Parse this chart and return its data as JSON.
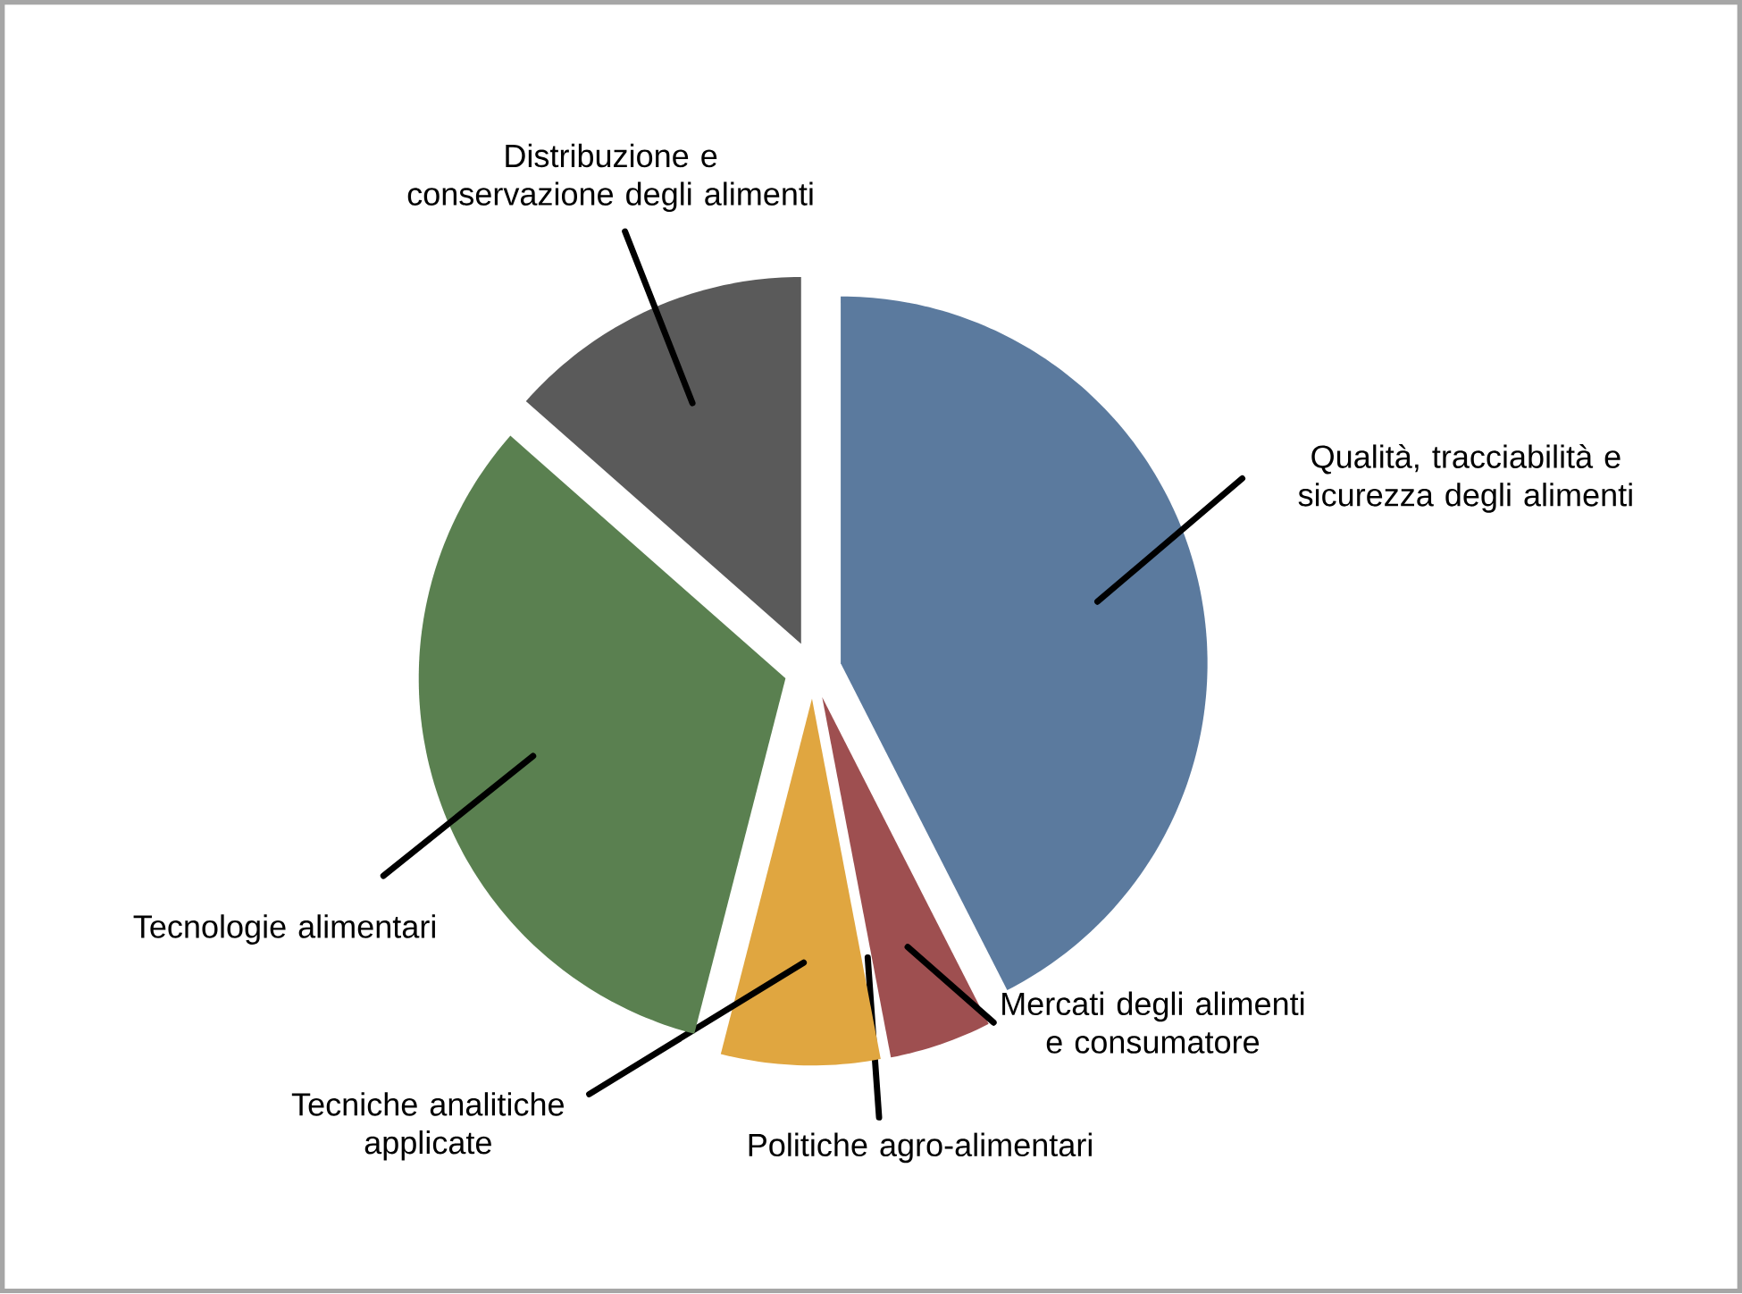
{
  "chart_data": {
    "type": "pie",
    "categories": [
      "Qualità, tracciabilità e sicurezza degli alimenti",
      "Mercati degli alimenti e consumatore",
      "Politiche agro-alimentari",
      "Tecniche analitiche applicate",
      "Tecnologie alimentari",
      "Distribuzione e conservazione degli alimenti"
    ],
    "values": [
      42.5,
      4.5,
      0,
      7,
      32.5,
      13.5
    ],
    "colors": [
      "#5b7a9e",
      "#9e4f50",
      null,
      "#e0a640",
      "#5a8050",
      "#5a5a5a"
    ]
  }
}
